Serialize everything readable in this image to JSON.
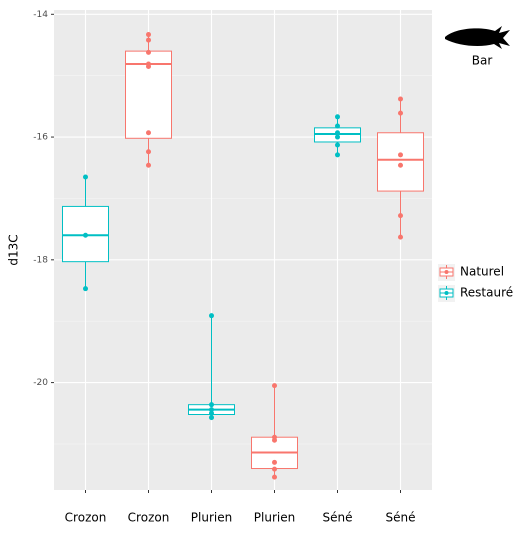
{
  "chart_data": {
    "type": "box",
    "y_label": "d13C",
    "annotation": "Bar",
    "categories": [
      "Crozon",
      "Crozon",
      "Plurien",
      "Plurien",
      "Séné",
      "Séné"
    ],
    "ylim": [
      -21.75,
      -13.93
    ],
    "yticks": [
      -14,
      -16,
      -18,
      -20
    ],
    "minor_yticks": [
      -15,
      -17,
      -19,
      -21
    ],
    "grid": true,
    "legend_position": "right",
    "series": [
      {
        "name": "Naturel",
        "color": "#F8766D",
        "whisker_low": [
          null,
          -16.49,
          null,
          -21.54,
          null,
          -17.63
        ],
        "q1": [
          null,
          -16.02,
          null,
          -21.4,
          null,
          -16.88
        ],
        "median": [
          null,
          -14.81,
          null,
          -21.14,
          null,
          -16.37
        ],
        "q3": [
          null,
          -14.6,
          null,
          -20.89,
          null,
          -15.93
        ],
        "whisker_high": [
          null,
          -14.33,
          null,
          -20.05,
          null,
          -15.38
        ],
        "points": [
          null,
          [
            -14.33,
            -14.42,
            -14.62,
            -14.81,
            -14.85,
            -15.93,
            -16.24,
            -16.46
          ],
          null,
          [
            -20.05,
            -20.89,
            -20.94,
            -21.3,
            -21.41,
            -21.54
          ],
          null,
          [
            -15.38,
            -15.61,
            -16.29,
            -16.46,
            -17.28,
            -17.63
          ]
        ]
      },
      {
        "name": "Restauré",
        "color": "#00BFC4",
        "whisker_low": [
          -18.45,
          null,
          -20.57,
          null,
          -16.29,
          null
        ],
        "q1": [
          -18.03,
          null,
          -20.52,
          null,
          -16.08,
          null
        ],
        "median": [
          -17.6,
          null,
          -20.44,
          null,
          -15.95,
          null
        ],
        "q3": [
          -17.13,
          null,
          -20.36,
          null,
          -15.85,
          null
        ],
        "whisker_high": [
          -16.65,
          null,
          -18.91,
          null,
          -15.67,
          null
        ],
        "points": [
          [
            -16.65,
            -17.6,
            -18.47
          ],
          null,
          [
            -18.91,
            -20.36,
            -20.44,
            -20.5,
            -20.57
          ],
          null,
          [
            -15.67,
            -15.82,
            -15.93,
            -16.0,
            -16.13,
            -16.29
          ],
          null
        ]
      }
    ]
  }
}
